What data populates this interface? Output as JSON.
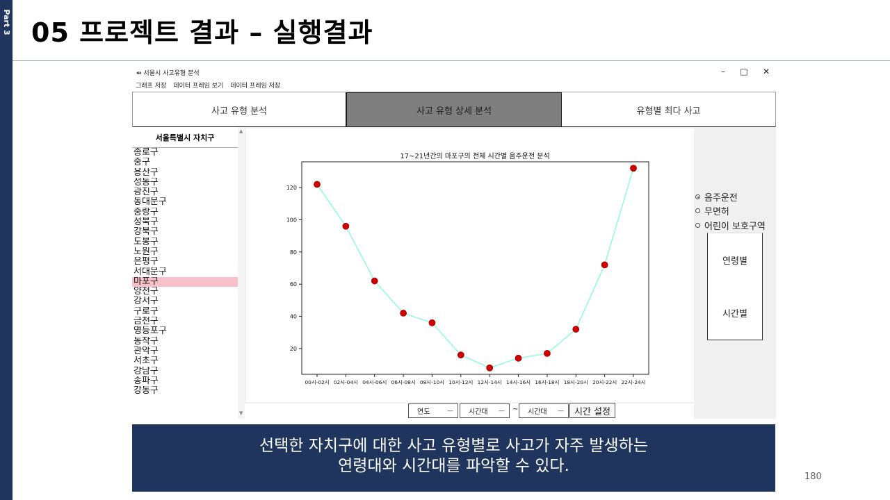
{
  "sidebar": {
    "label": "Part 3"
  },
  "slide": {
    "title": "05 프로젝트 결과 – 실행결과",
    "page_number": "180"
  },
  "window": {
    "title": "서울시 사고유형 분석",
    "icon": "app-feather-icon",
    "controls": {
      "minimize": "–",
      "maximize": "□",
      "close": "✕"
    },
    "menu": [
      "그래프 저장",
      "데이터 프레임 보기",
      "데이터 프레임 저장"
    ]
  },
  "tabs": [
    {
      "label": "사고 유형 분석",
      "active": false
    },
    {
      "label": "사고 유형 상세 분석",
      "active": true
    },
    {
      "label": "유형별 최다 사고",
      "active": false
    }
  ],
  "districts": {
    "header": "서울특별시 자치구",
    "selected": "마포구",
    "items": [
      "종로구",
      "중구",
      "용산구",
      "성동구",
      "광진구",
      "동대문구",
      "중랑구",
      "성북구",
      "강북구",
      "도봉구",
      "노원구",
      "은평구",
      "서대문구",
      "마포구",
      "양천구",
      "강서구",
      "구로구",
      "금천구",
      "영등포구",
      "동작구",
      "관악구",
      "서초구",
      "강남구",
      "송파구",
      "강동구"
    ]
  },
  "radios": [
    {
      "label": "음주운전",
      "checked": true
    },
    {
      "label": "무면허",
      "checked": false
    },
    {
      "label": "어린이 보호구역",
      "checked": false
    }
  ],
  "side_buttons": {
    "by_age": "연령별",
    "by_time": "시간별"
  },
  "controls": {
    "year": "연도",
    "time_from": "시간대",
    "separator": "~",
    "time_to": "시간대",
    "set_time": "시간 설정"
  },
  "colors": {
    "line": "#7fffd4",
    "marker": "#cc0000",
    "selected_row": "#f8c0c8",
    "banner": "#1f355e",
    "active_tab": "#7f7f7f"
  },
  "chart_data": {
    "type": "line",
    "title": "17~21년간의 마포구의 전체 시간별 음주운전 분석",
    "categories": [
      "00시-02시",
      "02시-04시",
      "04시-06시",
      "06시-08시",
      "08시-10시",
      "10시-12시",
      "12시-14시",
      "14시-16시",
      "16시-18시",
      "18시-20시",
      "20시-22시",
      "22시-24시"
    ],
    "values": [
      122,
      96,
      62,
      42,
      36,
      16,
      8,
      14,
      17,
      32,
      72,
      132
    ],
    "yticks": [
      20,
      40,
      60,
      80,
      100,
      120
    ],
    "ylim": [
      4,
      136
    ],
    "xlabel": "",
    "ylabel": "",
    "grid": false
  },
  "banner": {
    "line1": "선택한 자치구에 대한 사고 유형별로 사고가 자주 발생하는",
    "line2": "연령대와 시간대를 파악할 수 있다."
  }
}
